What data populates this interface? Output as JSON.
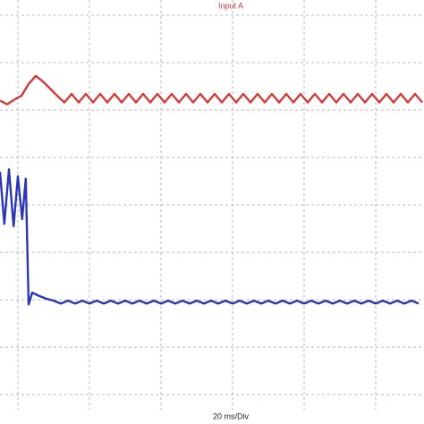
{
  "chart_data": {
    "type": "line",
    "title": "Input A",
    "xlabel": "20 ms/Div",
    "xlim": [
      -0.25,
      5.675
    ],
    "ylim": [
      -4.62,
      4.32
    ],
    "xticks": [
      0,
      1,
      2,
      3,
      4,
      5
    ],
    "yticks": [
      -4,
      -3,
      -2,
      -1,
      0,
      1,
      2,
      3,
      4
    ],
    "grid": true,
    "series": [
      {
        "name": "Input A",
        "color": "#d23a3a",
        "x": [
          -0.25,
          -0.15,
          -0.05,
          0.05,
          0.15,
          0.25,
          0.35,
          0.45,
          0.55,
          0.65,
          0.75,
          0.85,
          0.95,
          1.05,
          1.15,
          1.25,
          1.35,
          1.45,
          1.55,
          1.65,
          1.75,
          1.85,
          1.95,
          2.05,
          2.15,
          2.25,
          2.35,
          2.45,
          2.55,
          2.65,
          2.75,
          2.85,
          2.95,
          3.05,
          3.15,
          3.25,
          3.35,
          3.45,
          3.55,
          3.65,
          3.75,
          3.85,
          3.95,
          4.05,
          4.15,
          4.25,
          4.35,
          4.45,
          4.55,
          4.65,
          4.75,
          4.85,
          4.95,
          5.05,
          5.15,
          5.25,
          5.35,
          5.45,
          5.55,
          5.65
        ],
        "values": [
          2.2,
          2.12,
          2.22,
          2.3,
          2.55,
          2.72,
          2.6,
          2.45,
          2.3,
          2.16,
          2.34,
          2.16,
          2.34,
          2.16,
          2.34,
          2.16,
          2.34,
          2.16,
          2.34,
          2.16,
          2.34,
          2.16,
          2.34,
          2.16,
          2.34,
          2.16,
          2.34,
          2.16,
          2.34,
          2.16,
          2.34,
          2.16,
          2.34,
          2.16,
          2.34,
          2.16,
          2.34,
          2.16,
          2.34,
          2.16,
          2.34,
          2.16,
          2.34,
          2.16,
          2.34,
          2.16,
          2.34,
          2.16,
          2.34,
          2.16,
          2.34,
          2.16,
          2.34,
          2.16,
          2.34,
          2.16,
          2.34,
          2.16,
          2.34,
          2.16
        ]
      },
      {
        "color": "#2b36b4",
        "x": [
          -0.25,
          -0.19,
          -0.125,
          -0.06,
          0,
          0.06,
          0.11,
          0.15,
          0.2,
          0.3,
          0.4,
          0.5,
          0.6,
          0.7,
          0.8,
          0.9,
          1.0,
          1.1,
          1.2,
          1.3,
          1.4,
          1.5,
          1.6,
          1.7,
          1.8,
          1.9,
          2.0,
          2.1,
          2.2,
          2.3,
          2.4,
          2.5,
          2.6,
          2.7,
          2.8,
          2.9,
          3.0,
          3.1,
          3.2,
          3.3,
          3.4,
          3.5,
          3.6,
          3.7,
          3.8,
          3.9,
          4.0,
          4.1,
          4.2,
          4.3,
          4.4,
          4.5,
          4.6,
          4.7,
          4.8,
          4.9,
          5.0,
          5.1,
          5.2,
          5.3,
          5.4,
          5.5,
          5.6
        ],
        "values": [
          0.7,
          -0.4,
          0.75,
          -0.45,
          0.6,
          -0.3,
          0.55,
          -2.1,
          -1.85,
          -1.92,
          -1.98,
          -2.02,
          -2.08,
          -2.02,
          -2.08,
          -2.02,
          -2.08,
          -2.02,
          -2.08,
          -2.02,
          -2.08,
          -2.02,
          -2.08,
          -2.02,
          -2.08,
          -2.02,
          -2.08,
          -2.02,
          -2.08,
          -2.02,
          -2.08,
          -2.02,
          -2.08,
          -2.02,
          -2.08,
          -2.02,
          -2.08,
          -2.02,
          -2.08,
          -2.02,
          -2.08,
          -2.02,
          -2.08,
          -2.02,
          -2.08,
          -2.02,
          -2.08,
          -2.02,
          -2.08,
          -2.02,
          -2.08,
          -2.02,
          -2.08,
          -2.02,
          -2.08,
          -2.02,
          -2.08,
          -2.02,
          -2.08,
          -2.02,
          -2.08,
          -2.02,
          -2.08
        ]
      }
    ]
  }
}
